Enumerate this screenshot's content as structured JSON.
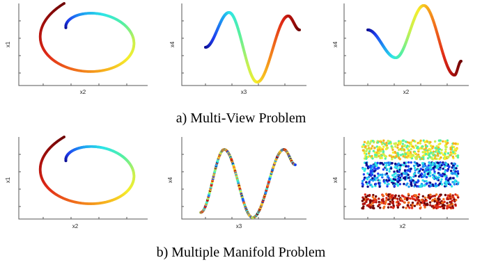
{
  "figure": {
    "captions": [
      "a) Multi-View Problem",
      "b) Multiple Manifold Problem"
    ]
  },
  "colormap": [
    "#0a0a8c",
    "#1f3ff0",
    "#1e9ef2",
    "#2ee6e6",
    "#56f0a0",
    "#c8f050",
    "#f5ee2e",
    "#f7b21e",
    "#f06c1c",
    "#e02a18",
    "#b0120e",
    "#700606"
  ],
  "chart_data": [
    {
      "type": "scatter",
      "row": "a",
      "xlabel": "x2",
      "ylabel": "x1",
      "grid": false,
      "series": [
        {
          "color_by": "t",
          "description_points": [
            {
              "t": 0.0,
              "x": 0.4,
              "y": 0.68
            },
            {
              "t": 0.25,
              "x": 0.9,
              "y": 0.86
            },
            {
              "t": 0.5,
              "x": 0.3,
              "y": 0.94
            },
            {
              "t": 0.75,
              "x": 0.22,
              "y": 0.3
            },
            {
              "t": 1.0,
              "x": 1.0,
              "y": 0.22
            }
          ]
        }
      ]
    },
    {
      "type": "scatter",
      "row": "a",
      "xlabel": "x3",
      "ylabel": "x4",
      "grid": false,
      "series": [
        {
          "color_by": "t",
          "description_points": [
            {
              "t": 0.0,
              "x": 0.0,
              "y": 0.0
            },
            {
              "t": 0.21,
              "x": 0.25,
              "y": 1.0
            },
            {
              "t": 0.6,
              "x": 0.55,
              "y": -1.0
            },
            {
              "t": 0.92,
              "x": 0.88,
              "y": 0.9
            },
            {
              "t": 1.0,
              "x": 1.0,
              "y": 0.5
            }
          ]
        }
      ]
    },
    {
      "type": "scatter",
      "row": "a",
      "xlabel": "x2",
      "ylabel": "x4",
      "grid": false,
      "series": [
        {
          "color_by": "t",
          "description_points": [
            {
              "t": 0.0,
              "x": 0.0,
              "y": 0.3
            },
            {
              "t": 0.28,
              "x": 0.3,
              "y": -0.5
            },
            {
              "t": 0.6,
              "x": 0.6,
              "y": 1.0
            },
            {
              "t": 0.92,
              "x": 0.93,
              "y": -1.0
            },
            {
              "t": 1.0,
              "x": 1.0,
              "y": -0.6
            }
          ]
        }
      ]
    },
    {
      "type": "scatter",
      "row": "b",
      "xlabel": "x2",
      "ylabel": "x1",
      "grid": false,
      "series": [
        {
          "color_by": "t",
          "description_points": [
            {
              "t": 0.0,
              "x": 0.4,
              "y": 0.68
            },
            {
              "t": 0.25,
              "x": 0.9,
              "y": 0.86
            },
            {
              "t": 0.5,
              "x": 0.3,
              "y": 0.94
            },
            {
              "t": 0.75,
              "x": 0.22,
              "y": 0.3
            },
            {
              "t": 1.0,
              "x": 1.0,
              "y": 0.22
            }
          ]
        }
      ]
    },
    {
      "type": "scatter",
      "row": "b",
      "xlabel": "x3",
      "ylabel": "x4",
      "grid": false,
      "series": [
        {
          "color_by": "random",
          "description_points": [
            {
              "x": 0.0,
              "y": -0.85
            },
            {
              "x": 0.25,
              "y": 1.0
            },
            {
              "x": 0.55,
              "y": -1.0
            },
            {
              "x": 0.88,
              "y": 1.0
            },
            {
              "x": 1.0,
              "y": 0.55
            }
          ]
        }
      ]
    },
    {
      "type": "scatter",
      "row": "b",
      "xlabel": "x2",
      "ylabel": "x4",
      "grid": false,
      "bands": [
        {
          "y_range": [
            0.06,
            0.26
          ],
          "colors": [
            "#700606",
            "#b0120e",
            "#e02a18",
            "#f06c1c"
          ]
        },
        {
          "y_range": [
            0.36,
            0.7
          ],
          "colors": [
            "#0a0a8c",
            "#1f3ff0",
            "#1e9ef2",
            "#2ee6e6"
          ]
        },
        {
          "y_range": [
            0.74,
            1.0
          ],
          "colors": [
            "#56f0a0",
            "#c8f050",
            "#f5ee2e",
            "#f7b21e"
          ]
        }
      ]
    }
  ]
}
